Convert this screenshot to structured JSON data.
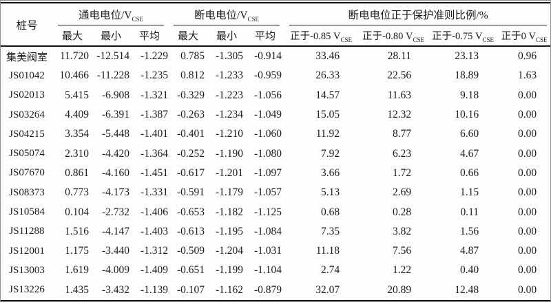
{
  "table": {
    "header": {
      "pile": "桩号",
      "on_potential": {
        "prefix": "通电电位/V",
        "sub": "CSE"
      },
      "off_potential": {
        "prefix": "断电电位/V",
        "sub": "CSE"
      },
      "criteria": "断电电位正于保护准则比例/%",
      "stat_headers": [
        "最大",
        "最小",
        "平均",
        "最大",
        "最小",
        "平均"
      ],
      "criteria_headers": [
        {
          "prefix": "正于-0.85 V",
          "sub": "CSE"
        },
        {
          "prefix": "正于-0.80 V",
          "sub": "CSE"
        },
        {
          "prefix": "正于-0.75 V",
          "sub": "CSE"
        },
        {
          "prefix": "正于0 V",
          "sub": "CSE"
        }
      ]
    },
    "rows": [
      {
        "pile": "集美阀室",
        "values": [
          "11.720",
          "-12.514",
          "-1.229",
          "0.785",
          "-1.305",
          "-0.914",
          "33.46",
          "28.11",
          "23.13",
          "0.96"
        ]
      },
      {
        "pile": "JS01042",
        "values": [
          "10.466",
          "-11.228",
          "-1.235",
          "0.812",
          "-1.233",
          "-0.959",
          "26.33",
          "22.56",
          "18.89",
          "1.63"
        ]
      },
      {
        "pile": "JS02013",
        "values": [
          "5.415",
          "-6.908",
          "-1.321",
          "-0.329",
          "-1.223",
          "-1.056",
          "14.57",
          "11.63",
          "9.18",
          "0.00"
        ]
      },
      {
        "pile": "JS03264",
        "values": [
          "4.409",
          "-6.391",
          "-1.387",
          "-0.263",
          "-1.234",
          "-1.049",
          "15.05",
          "12.32",
          "10.16",
          "0.00"
        ]
      },
      {
        "pile": "JS04215",
        "values": [
          "3.354",
          "-5.448",
          "-1.401",
          "-0.401",
          "-1.210",
          "-1.060",
          "11.92",
          "8.77",
          "6.60",
          "0.00"
        ]
      },
      {
        "pile": "JS05074",
        "values": [
          "2.310",
          "-4.420",
          "-1.364",
          "-0.252",
          "-1.190",
          "-1.080",
          "7.92",
          "6.23",
          "4.67",
          "0.00"
        ]
      },
      {
        "pile": "JS07670",
        "values": [
          "0.861",
          "-4.160",
          "-1.451",
          "-0.617",
          "-1.201",
          "-1.097",
          "3.66",
          "1.72",
          "0.66",
          "0.00"
        ]
      },
      {
        "pile": "JS08373",
        "values": [
          "0.773",
          "-4.173",
          "-1.331",
          "-0.591",
          "-1.179",
          "-1.057",
          "5.13",
          "2.69",
          "1.15",
          "0.00"
        ]
      },
      {
        "pile": "JS10584",
        "values": [
          "0.104",
          "-2.732",
          "-1.406",
          "-0.653",
          "-1.182",
          "-1.125",
          "0.68",
          "0.28",
          "0.11",
          "0.00"
        ]
      },
      {
        "pile": "JS11288",
        "values": [
          "1.516",
          "-4.147",
          "-1.403",
          "-0.613",
          "-1.195",
          "-1.084",
          "7.35",
          "3.82",
          "1.56",
          "0.00"
        ]
      },
      {
        "pile": "JS12001",
        "values": [
          "1.175",
          "-3.440",
          "-1.312",
          "-0.509",
          "-1.204",
          "-1.031",
          "11.18",
          "7.56",
          "4.87",
          "0.00"
        ]
      },
      {
        "pile": "JS13003",
        "values": [
          "1.619",
          "-4.009",
          "-1.409",
          "-0.651",
          "-1.199",
          "-1.104",
          "2.74",
          "1.22",
          "0.40",
          "0.00"
        ]
      },
      {
        "pile": "JS13226",
        "values": [
          "1.435",
          "-3.432",
          "-1.139",
          "-0.107",
          "-1.162",
          "-0.879",
          "32.07",
          "20.89",
          "12.48",
          "0.00"
        ]
      }
    ]
  }
}
